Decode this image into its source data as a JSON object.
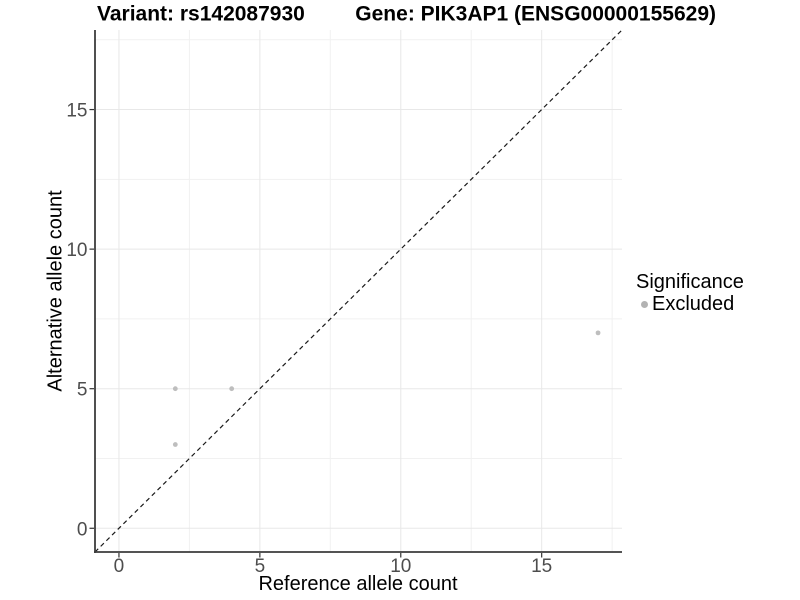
{
  "chart_data": {
    "type": "scatter",
    "title_left": "Variant: rs142087930",
    "title_right": "Gene: PIK3AP1 (ENSG00000155629)",
    "xlabel": "Reference allele count",
    "ylabel": "Alternative allele count",
    "xlim": [
      -0.85,
      17.85
    ],
    "ylim": [
      -0.85,
      17.85
    ],
    "x_major_ticks": [
      0,
      5,
      10,
      15
    ],
    "y_major_ticks": [
      0,
      5,
      10,
      15
    ],
    "x_minor_gridlines": [
      2.5,
      7.5,
      12.5,
      17.5
    ],
    "y_minor_gridlines": [
      2.5,
      7.5,
      12.5,
      17.5
    ],
    "grid": true,
    "identity_line": {
      "slope": 1,
      "intercept": 0,
      "style": "dashed",
      "color": "#1a1a1a"
    },
    "series": [
      {
        "name": "Excluded",
        "color": "#bebebe",
        "points": [
          {
            "x": 2,
            "y": 5
          },
          {
            "x": 4,
            "y": 5
          },
          {
            "x": 2,
            "y": 3
          },
          {
            "x": 17,
            "y": 7
          }
        ]
      }
    ],
    "legend": {
      "title": "Significance",
      "position": "right",
      "items": [
        {
          "label": "Excluded",
          "marker_color": "#b3b3b3"
        }
      ]
    }
  },
  "colors": {
    "background": "#ffffff",
    "grid_major": "#e8e8e8",
    "grid_minor": "#f1f1f1",
    "axis_line": "#3c3c3c",
    "tick_mark": "#333333",
    "tick_label": "#4d4d4d",
    "point": "#bebebe"
  }
}
